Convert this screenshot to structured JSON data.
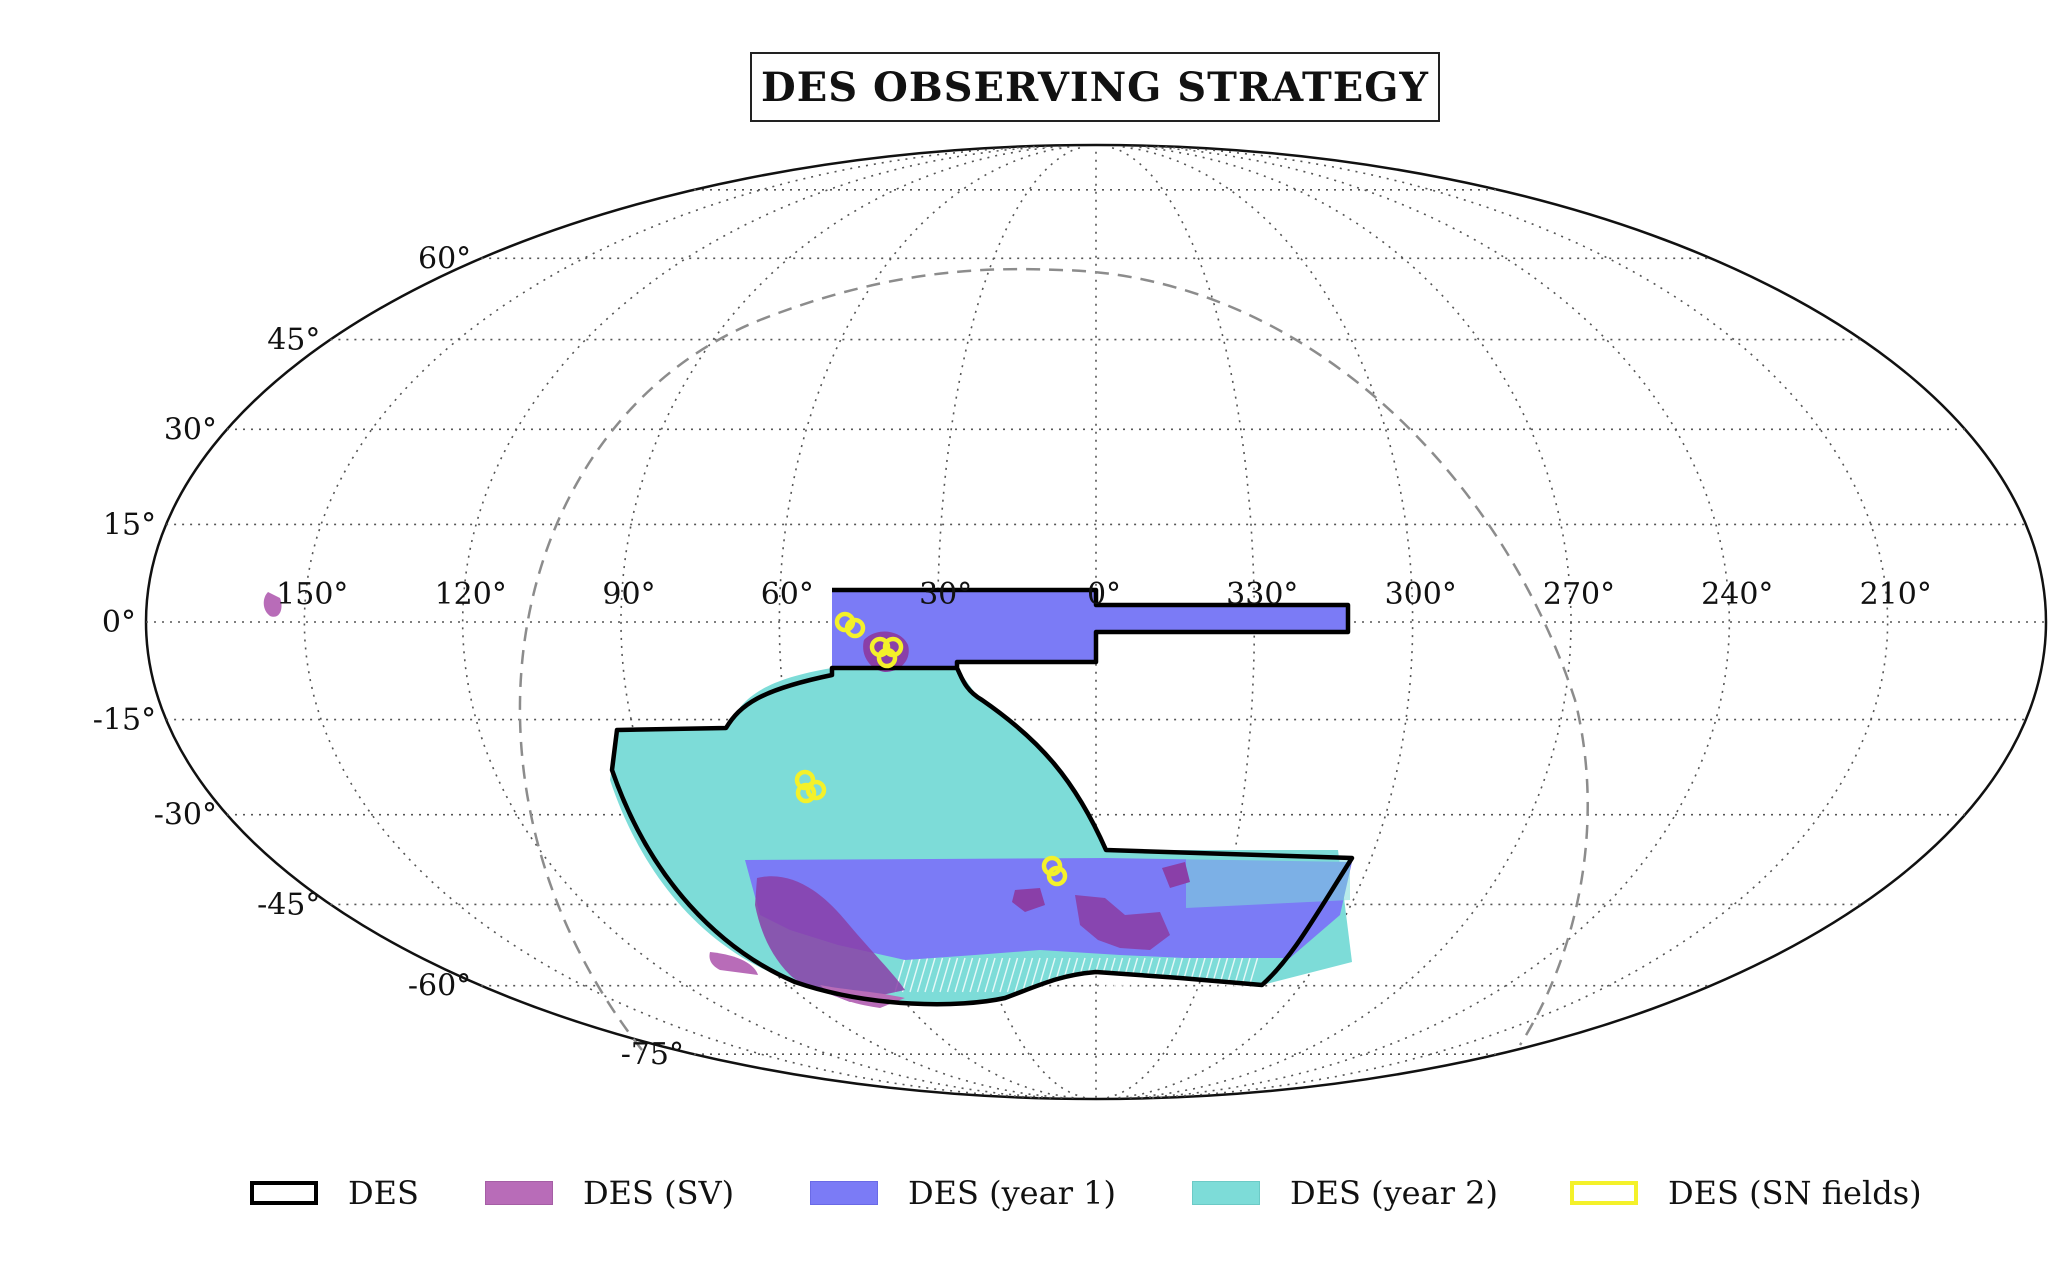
{
  "title": "DES OBSERVING STRATEGY",
  "projection": "mollweide",
  "ra_labels": [
    "150°",
    "120°",
    "90°",
    "60°",
    "30°",
    "0°",
    "330°",
    "300°",
    "270°",
    "240°",
    "210°"
  ],
  "dec_labels": [
    "60°",
    "45°",
    "30°",
    "15°",
    "0°",
    "-15°",
    "-30°",
    "-45°",
    "-60°",
    "-75°"
  ],
  "grid": "dotted",
  "galactic_plane": "dashed gray",
  "legend": {
    "placement": "bottom",
    "items": [
      {
        "label": "DES",
        "color": "#000000",
        "style": "outline"
      },
      {
        "label": "DES (SV)",
        "color": "#b86cb8",
        "style": "fill"
      },
      {
        "label": "DES (year 1)",
        "color": "#7b7bf6",
        "style": "fill"
      },
      {
        "label": "DES (year 2)",
        "color": "#7ddcd8",
        "style": "fill"
      },
      {
        "label": "DES (SN fields)",
        "color": "#f4f12a",
        "style": "outline"
      }
    ]
  },
  "colors": {
    "des_outline": "#000000",
    "sv": "#b86cb8",
    "sv_dark": "#8a3fa8",
    "year1": "#7b7bf6",
    "year2": "#7ddcd8",
    "sn": "#f4f12a",
    "grid": "#555555",
    "galactic": "#8c8c8c"
  }
}
